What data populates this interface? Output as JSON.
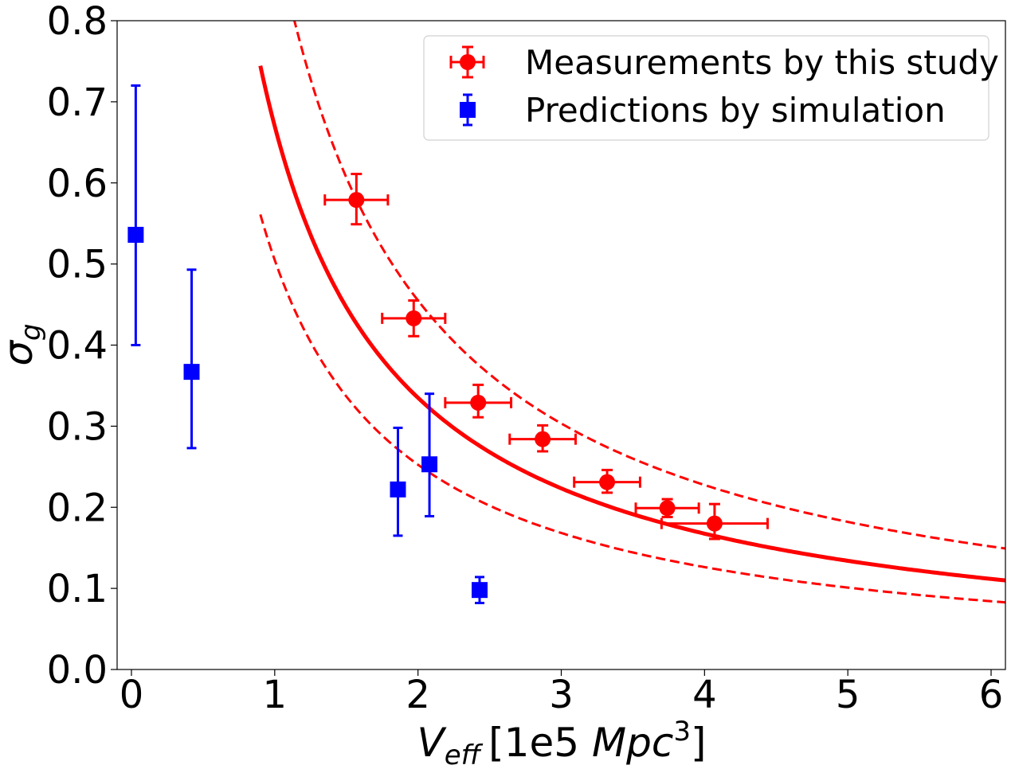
{
  "chart_data": {
    "type": "scatter",
    "title": "",
    "xlabel": {
      "main": "V",
      "sub": "eff",
      "unit": "[1e5 ",
      "unit_italic": "Mpc",
      "sup": "3",
      "close": "]"
    },
    "ylabel": {
      "main": "σ",
      "sub": "g"
    },
    "xlim": [
      -0.1,
      6.1
    ],
    "ylim": [
      0.0,
      0.8
    ],
    "grid": false,
    "legend_position": "top-right",
    "x_ticks": [
      0,
      1,
      2,
      3,
      4,
      5,
      6
    ],
    "x_tick_labels": [
      "0",
      "1",
      "2",
      "3",
      "4",
      "5",
      "6"
    ],
    "y_ticks": [
      0.0,
      0.1,
      0.2,
      0.3,
      0.4,
      0.5,
      0.6,
      0.7,
      0.8
    ],
    "y_tick_labels": [
      "0.0",
      "0.1",
      "0.2",
      "0.3",
      "0.4",
      "0.5",
      "0.6",
      "0.7",
      "0.8"
    ],
    "series": [
      {
        "name": "Measurements by this study",
        "color": "#ff0000",
        "marker": "circle",
        "points": [
          {
            "x": 1.57,
            "y": 0.579,
            "xerr": 0.22,
            "yerr_low": 0.03,
            "yerr_high": 0.032
          },
          {
            "x": 1.97,
            "y": 0.433,
            "xerr": 0.22,
            "yerr_low": 0.022,
            "yerr_high": 0.022
          },
          {
            "x": 2.42,
            "y": 0.329,
            "xerr": 0.23,
            "yerr_low": 0.018,
            "yerr_high": 0.022
          },
          {
            "x": 2.87,
            "y": 0.284,
            "xerr": 0.23,
            "yerr_low": 0.015,
            "yerr_high": 0.017
          },
          {
            "x": 3.32,
            "y": 0.231,
            "xerr": 0.23,
            "yerr_low": 0.013,
            "yerr_high": 0.015
          },
          {
            "x": 3.74,
            "y": 0.199,
            "xerr": 0.22,
            "yerr_low": 0.011,
            "yerr_high": 0.011
          },
          {
            "x": 4.07,
            "y": 0.18,
            "xerr": 0.37,
            "yerr_low": 0.019,
            "yerr_high": 0.024
          }
        ]
      },
      {
        "name": "Predictions by simulation",
        "color": "#0000ff",
        "marker": "square",
        "points": [
          {
            "x": 0.03,
            "y": 0.536,
            "yerr_low": 0.136,
            "yerr_high": 0.184
          },
          {
            "x": 0.42,
            "y": 0.367,
            "yerr_low": 0.094,
            "yerr_high": 0.126
          },
          {
            "x": 1.86,
            "y": 0.222,
            "yerr_low": 0.057,
            "yerr_high": 0.076
          },
          {
            "x": 2.08,
            "y": 0.253,
            "yerr_low": 0.064,
            "yerr_high": 0.087
          },
          {
            "x": 2.43,
            "y": 0.098,
            "yerr_low": 0.016,
            "yerr_high": 0.016
          }
        ]
      }
    ],
    "fit_curves": [
      {
        "name": "best fit",
        "color": "#ff0000",
        "style": "solid",
        "coefficient": 0.67
      },
      {
        "name": "upper bound",
        "color": "#ff0000",
        "style": "dashed",
        "coefficient": 0.91
      },
      {
        "name": "lower bound",
        "color": "#ff0000",
        "style": "dashed",
        "coefficient": 0.505
      }
    ],
    "fit_form": "sigma = coefficient / V_eff"
  }
}
